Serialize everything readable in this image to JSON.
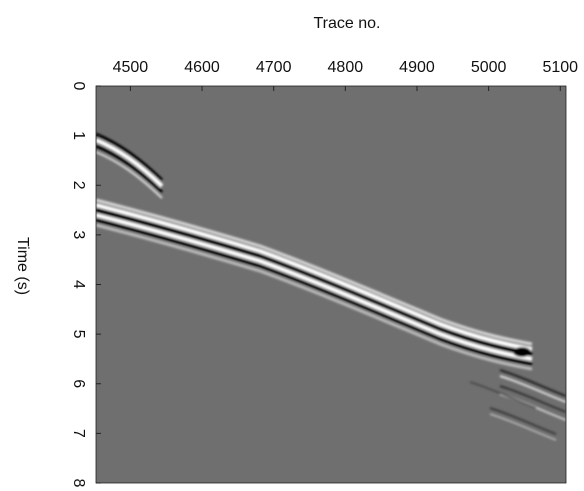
{
  "chart_data": {
    "type": "seismic",
    "x_label": "Trace no.",
    "y_label": "Time (s)",
    "xlim": [
      4452,
      5108
    ],
    "xticks": [
      4500,
      4600,
      4700,
      4800,
      4900,
      5000,
      5100
    ],
    "ylim": [
      0,
      8
    ],
    "yticks": [
      0,
      1,
      2,
      3,
      4,
      5,
      6,
      7,
      8
    ],
    "y_inverted": true
  }
}
